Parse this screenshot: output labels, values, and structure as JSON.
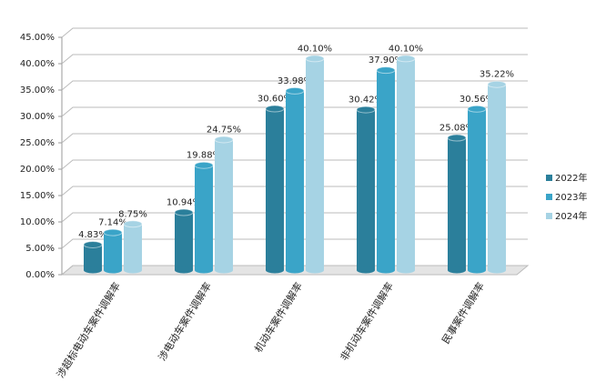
{
  "chart_data": {
    "type": "bar",
    "categories": [
      "涉超标电动车案件调解率",
      "涉电动车案件调解率",
      "机动车案件调解率",
      "非机动车案件调解率",
      "民事案件调解率"
    ],
    "series": [
      {
        "name": "2022年",
        "color": "#2b7f9b",
        "values": [
          4.83,
          10.94,
          30.6,
          30.42,
          25.08
        ],
        "value_labels": [
          "4.83%",
          "10.94%",
          "30.60%",
          "30.42%",
          "25.08%"
        ]
      },
      {
        "name": "2023年",
        "color": "#3aa4c8",
        "values": [
          7.14,
          19.88,
          33.98,
          37.9,
          30.56
        ],
        "value_labels": [
          "7.14%",
          "19.88%",
          "33.98%",
          "37.90%",
          "30.56%"
        ]
      },
      {
        "name": "2024年",
        "color": "#a6d3e4",
        "values": [
          8.75,
          24.75,
          40.1,
          40.1,
          35.22
        ],
        "value_labels": [
          "8.75%",
          "24.75%",
          "40.10%",
          "40.10%",
          "35.22%"
        ]
      }
    ],
    "ylim": [
      0,
      45
    ],
    "yticks": [
      {
        "value": 0,
        "label": "0.00%"
      },
      {
        "value": 5,
        "label": "5.00%"
      },
      {
        "value": 10,
        "label": "10.00%"
      },
      {
        "value": 15,
        "label": "15.00%"
      },
      {
        "value": 20,
        "label": "20.00%"
      },
      {
        "value": 25,
        "label": "25.00%"
      },
      {
        "value": 30,
        "label": "30.00%"
      },
      {
        "value": 35,
        "label": "35.00%"
      },
      {
        "value": 40,
        "label": "40.00%"
      },
      {
        "value": 45,
        "label": "45.00%"
      }
    ],
    "grid": true,
    "legend": "right"
  }
}
